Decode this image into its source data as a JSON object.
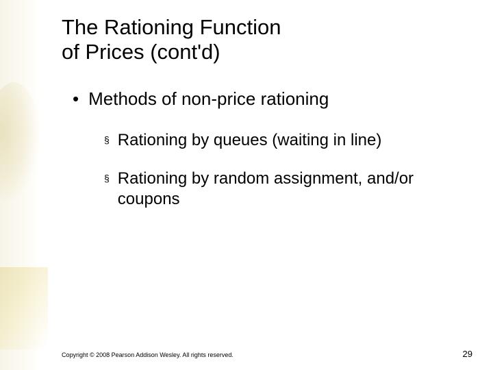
{
  "title": {
    "line1": "The Rationing Function",
    "line2": "of Prices (cont'd)"
  },
  "bullets": {
    "level1": {
      "marker": "•",
      "text": "Methods of non-price rationing"
    },
    "level2": [
      {
        "marker": "§",
        "text": "Rationing by queues (waiting in line)"
      },
      {
        "marker": "§",
        "text": "Rationing by random assignment, and/or coupons"
      }
    ]
  },
  "footer": {
    "copyright": "Copyright © 2008 Pearson Addison Wesley. All rights reserved.",
    "page": "29"
  },
  "style": {
    "background_color": "#ffffff",
    "title_color": "#000000",
    "body_color": "#000000",
    "title_fontsize": 31,
    "l1_fontsize": 26,
    "l2_fontsize": 24,
    "copyright_fontsize": 9,
    "page_fontsize": 13,
    "accent_wash": "#d4c060"
  }
}
